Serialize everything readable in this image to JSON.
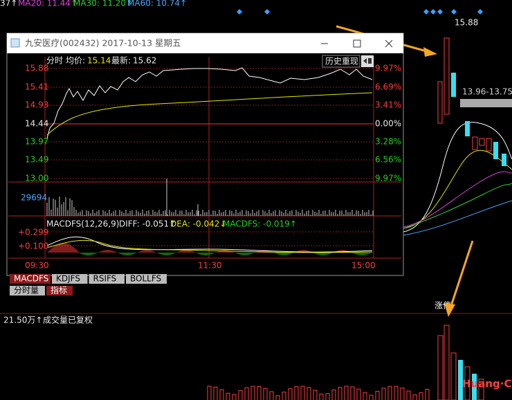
{
  "top_bar": {
    "ma_partial": "37↑",
    "ma20": "MA20: 11.44↑",
    "ma30": "MA30: 11.20↑",
    "ma60": "MA60: 10.74↑"
  },
  "background_chart": {
    "high_label": "15.88",
    "range_label": "13.96-13.75",
    "limit_up_label": "涨停"
  },
  "window": {
    "title": "九安医疗(002432) 2017-10-13 星期五",
    "header": {
      "mode": "分时",
      "avg_label": "均价:",
      "avg": "15.14",
      "latest_label": "最新:",
      "latest": "15.62"
    },
    "replay_button": "历史重现",
    "price_ticks": [
      "15.88",
      "15.41",
      "14.93",
      "14.44",
      "13.97",
      "13.49",
      "13.00"
    ],
    "pct_ticks": [
      "9.97%",
      "6.69%",
      "3.41%",
      "0.00%",
      "3.28%",
      "6.56%",
      "9.97%"
    ],
    "volume_label": "29694",
    "macd": {
      "name": "MACDFS(12,26,9)",
      "diff": "DIFF: -0.051↑",
      "dea": "DEA: -0.042↓",
      "macdfs": "MACDFS: -0.019↑"
    },
    "macd_ticks": [
      "+0.299",
      "+0.100"
    ],
    "time_ticks": [
      "09:30",
      "11:30",
      "15:00"
    ],
    "tabs": [
      "MACDFS",
      "KDJFS",
      "RSIFS",
      "BOLLFS"
    ],
    "tabs2": [
      "分时量",
      "指标"
    ]
  },
  "volume_panel": {
    "label": "21.50万↑",
    "note": "成交量已复权"
  },
  "watermark": "Huang·CN"
}
